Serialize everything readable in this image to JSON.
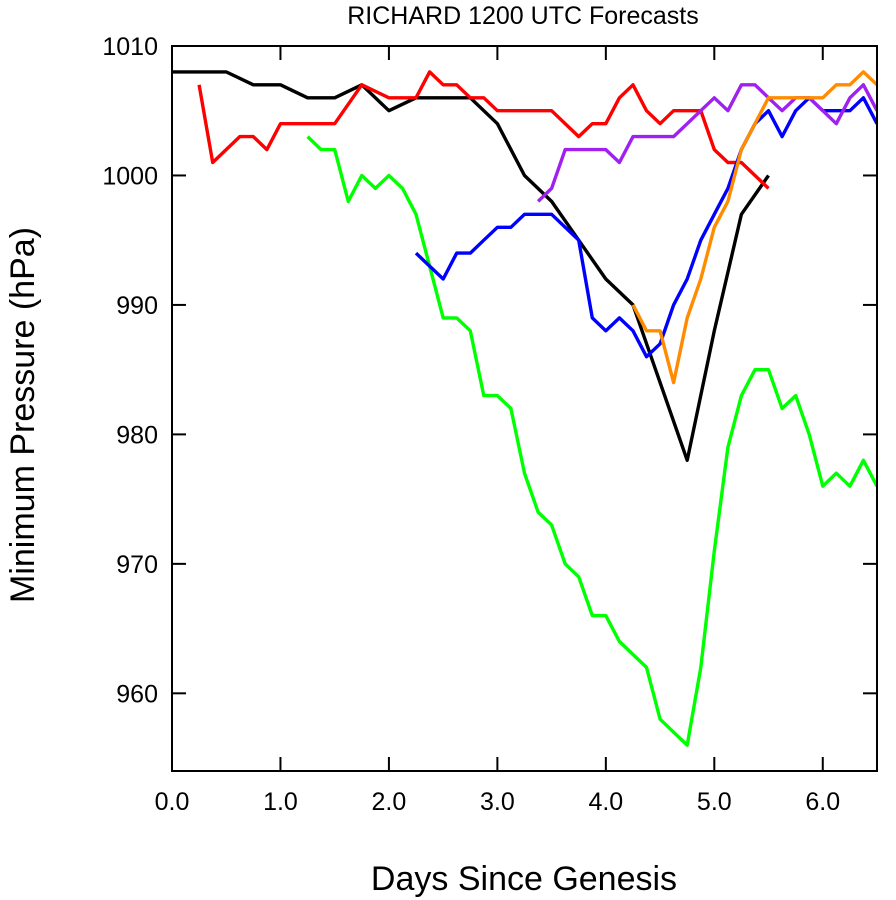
{
  "chart_data": {
    "type": "line",
    "title": "RICHARD 1200 UTC Forecasts",
    "xlabel": "Days Since Genesis",
    "ylabel": "Minimum Pressure (hPa)",
    "xlim": [
      0,
      6.5
    ],
    "ylim": [
      954,
      1010
    ],
    "x_ticks": [
      0,
      1,
      2,
      3,
      4,
      5,
      6
    ],
    "x_tick_labels": [
      "0.0",
      "1.0",
      "2.0",
      "3.0",
      "4.0",
      "5.0",
      "6.0"
    ],
    "y_ticks": [
      960,
      970,
      980,
      990,
      1000,
      1010
    ],
    "y_tick_labels": [
      "960",
      "970",
      "980",
      "990",
      "1000",
      "1010"
    ],
    "grid": false,
    "series": [
      {
        "color": "#000000",
        "x": [
          0,
          0.5,
          0.75,
          1.0,
          1.25,
          1.5,
          1.75,
          2.0,
          2.25,
          2.5,
          2.75,
          3.0,
          3.25,
          3.5,
          3.75,
          4.0,
          4.25,
          4.5,
          4.75,
          5.0,
          5.25,
          5.5
        ],
        "y": [
          1008,
          1008,
          1007,
          1007,
          1006,
          1006,
          1007,
          1005,
          1006,
          1006,
          1006,
          1004,
          1000,
          998,
          995,
          992,
          990,
          984,
          978,
          988,
          997,
          1000
        ]
      },
      {
        "color": "#ff0000",
        "x": [
          0.25,
          0.375,
          0.625,
          0.75,
          0.875,
          1.0,
          1.5,
          1.75,
          2.0,
          2.125,
          2.25,
          2.375,
          2.5,
          2.625,
          2.75,
          2.875,
          3.0,
          3.25,
          3.5,
          3.75,
          3.875,
          4.0,
          4.125,
          4.25,
          4.375,
          4.5,
          4.625,
          4.875,
          5.0,
          5.125,
          5.25,
          5.375,
          5.5
        ],
        "y": [
          1007,
          1001,
          1003,
          1003,
          1002,
          1004,
          1004,
          1007,
          1006,
          1006,
          1006,
          1008,
          1007,
          1007,
          1006,
          1006,
          1005,
          1005,
          1005,
          1003,
          1004,
          1004,
          1006,
          1007,
          1005,
          1004,
          1005,
          1005,
          1002,
          1001,
          1001,
          1000,
          999
        ]
      },
      {
        "color": "#00ff00",
        "x": [
          1.25,
          1.375,
          1.5,
          1.625,
          1.75,
          1.875,
          2.0,
          2.125,
          2.25,
          2.375,
          2.5,
          2.625,
          2.75,
          2.875,
          3.0,
          3.125,
          3.25,
          3.375,
          3.5,
          3.625,
          3.75,
          3.875,
          4.0,
          4.125,
          4.25,
          4.375,
          4.5,
          4.625,
          4.75,
          4.875,
          5.0,
          5.125,
          5.25,
          5.375,
          5.5,
          5.625,
          5.75,
          5.875,
          6.0,
          6.125,
          6.25,
          6.375,
          6.5
        ],
        "y": [
          1003,
          1002,
          1002,
          998,
          1000,
          999,
          1000,
          999,
          997,
          993,
          989,
          989,
          988,
          983,
          983,
          982,
          977,
          974,
          973,
          970,
          969,
          966,
          966,
          964,
          963,
          962,
          958,
          957,
          956,
          962,
          971,
          979,
          983,
          985,
          985,
          982,
          983,
          980,
          976,
          977,
          976,
          978,
          976
        ]
      },
      {
        "color": "#0000ff",
        "x": [
          2.25,
          2.375,
          2.5,
          2.625,
          2.75,
          2.875,
          3.0,
          3.125,
          3.25,
          3.375,
          3.5,
          3.625,
          3.75,
          3.875,
          4.0,
          4.125,
          4.25,
          4.375,
          4.5,
          4.625,
          4.75,
          4.875,
          5.0,
          5.125,
          5.25,
          5.375,
          5.5,
          5.625,
          5.75,
          5.875,
          6.0,
          6.125,
          6.25,
          6.375,
          6.5
        ],
        "y": [
          994,
          993,
          992,
          994,
          994,
          995,
          996,
          996,
          997,
          997,
          997,
          996,
          995,
          989,
          988,
          989,
          988,
          986,
          987,
          990,
          992,
          995,
          997,
          999,
          1002,
          1004,
          1005,
          1003,
          1005,
          1006,
          1005,
          1005,
          1005,
          1006,
          1004
        ]
      },
      {
        "color": "#a020f0",
        "x": [
          3.375,
          3.5,
          3.625,
          3.75,
          3.875,
          4.0,
          4.125,
          4.25,
          4.375,
          4.5,
          4.625,
          4.75,
          4.875,
          5.0,
          5.125,
          5.25,
          5.375,
          5.5,
          5.625,
          5.75,
          5.875,
          6.0,
          6.125,
          6.25,
          6.375,
          6.5
        ],
        "y": [
          998,
          999,
          1002,
          1002,
          1002,
          1002,
          1001,
          1003,
          1003,
          1003,
          1003,
          1004,
          1005,
          1006,
          1005,
          1007,
          1007,
          1006,
          1005,
          1006,
          1006,
          1005,
          1004,
          1006,
          1007,
          1005
        ]
      },
      {
        "color": "#ff8c00",
        "x": [
          4.25,
          4.375,
          4.5,
          4.625,
          4.75,
          4.875,
          5.0,
          5.125,
          5.25,
          5.375,
          5.5,
          5.625,
          5.75,
          5.875,
          6.0,
          6.125,
          6.25,
          6.375,
          6.5
        ],
        "y": [
          990,
          988,
          988,
          984,
          989,
          992,
          996,
          998,
          1002,
          1004,
          1006,
          1006,
          1006,
          1006,
          1006,
          1007,
          1007,
          1008,
          1007
        ]
      }
    ]
  }
}
